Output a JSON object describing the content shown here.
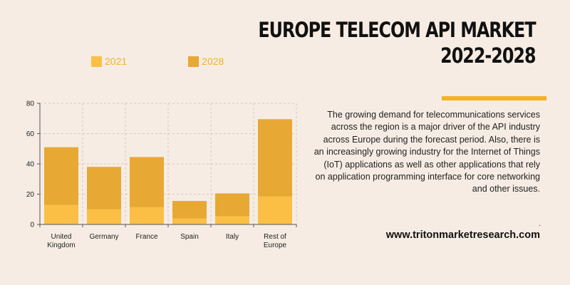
{
  "header": {
    "title_line1": "EUROPE TELECOM API MARKET",
    "title_line2": "2022-2028"
  },
  "colors": {
    "series_2021": "#fbbf45",
    "series_2028": "#e8a834",
    "accent": "#f3b325",
    "grid": "#d8c9b8",
    "axis": "#555555"
  },
  "description": "The growing demand for telecommunications services across the region is a major driver of the API industry across Europe during the forecast period. Also, there is an increasingly growing industry for the Internet of Things (IoT) applications as well as other applications that rely on application programming interface for core networking and other issues.",
  "footer": {
    "dot": ".",
    "website": "www.tritonmarketresearch.com"
  },
  "chart_data": {
    "type": "bar",
    "stacked": "overlay",
    "categories": [
      "United\nKingdom",
      "Germany",
      "France",
      "Spain",
      "Italy",
      "Rest of\nEurope"
    ],
    "series": [
      {
        "name": "2021",
        "values": [
          13,
          10,
          11.5,
          4,
          5.5,
          18.5
        ]
      },
      {
        "name": "2028",
        "values": [
          51,
          38,
          44.5,
          15.5,
          20.5,
          69.5
        ]
      }
    ],
    "yticks": [
      0,
      20,
      40,
      60,
      80
    ],
    "ylim": [
      0,
      80
    ],
    "grid": true,
    "legend": "top-left"
  }
}
